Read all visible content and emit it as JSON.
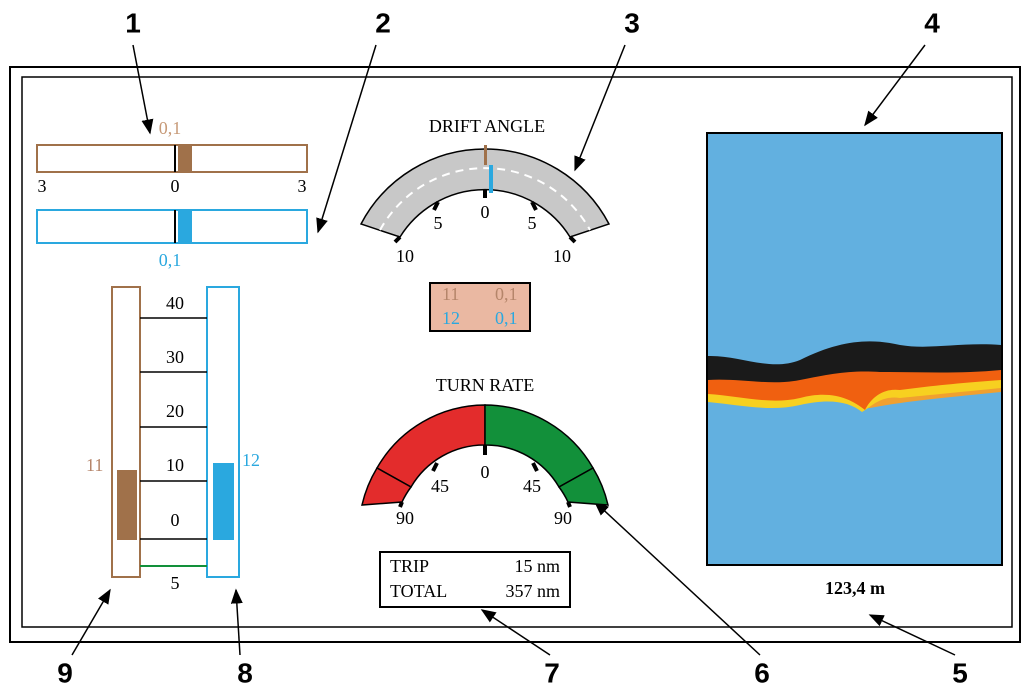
{
  "callouts": [
    "1",
    "2",
    "3",
    "4",
    "5",
    "6",
    "7",
    "8",
    "9"
  ],
  "roll_indicator": {
    "top_value": "0,1",
    "scale": [
      "3",
      "0",
      "3"
    ],
    "bottom_value": "0,1"
  },
  "drift_angle": {
    "title": "DRIFT ANGLE",
    "scale": [
      "10",
      "5",
      "0",
      "5",
      "10"
    ]
  },
  "readout": {
    "rows": [
      [
        "11",
        "0,1"
      ],
      [
        "12",
        "0,1"
      ]
    ]
  },
  "turn_rate": {
    "title": "TURN RATE",
    "scale": [
      "90",
      "45",
      "0",
      "45",
      "90"
    ]
  },
  "distance": {
    "rows": [
      [
        "TRIP",
        "15 nm"
      ],
      [
        "TOTAL",
        "357 nm"
      ]
    ]
  },
  "speed_gauge": {
    "scale": [
      "40",
      "30",
      "20",
      "10",
      "0",
      "5"
    ],
    "left_label": "11",
    "right_label": "12"
  },
  "depth": "123,4 m"
}
